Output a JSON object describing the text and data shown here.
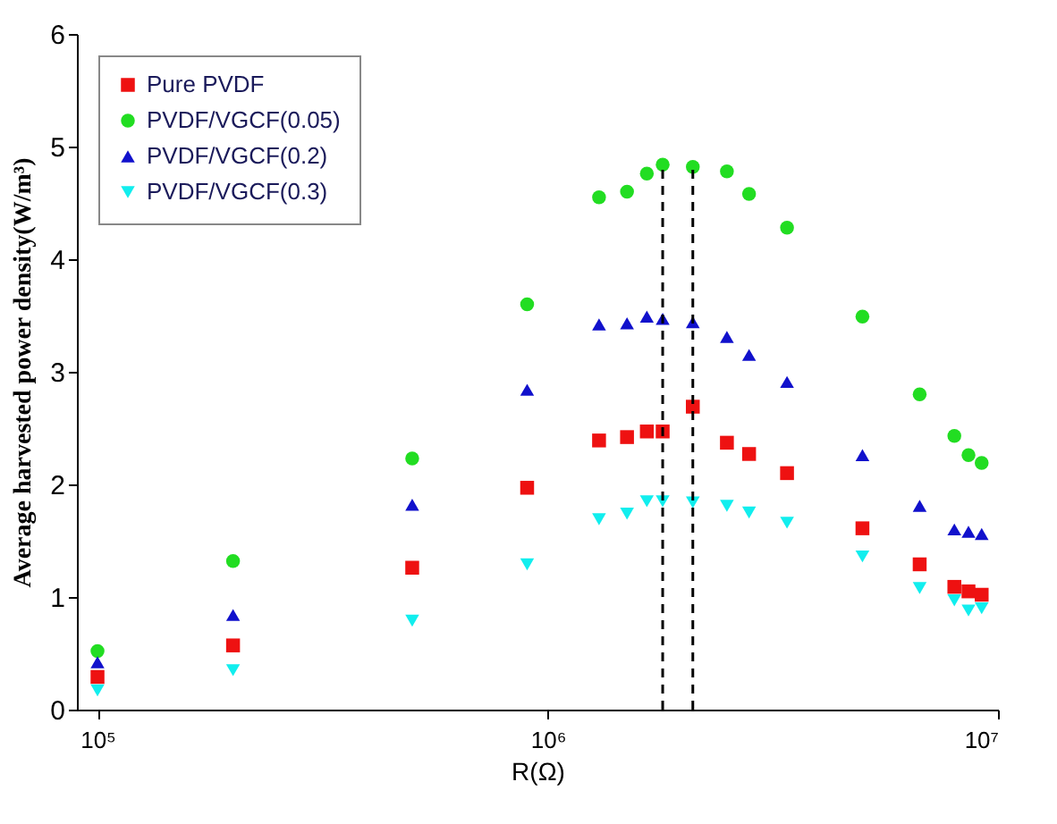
{
  "chart_data": {
    "type": "scatter",
    "xlabel": "R(Ω)",
    "ylabel": "Average harvested power density(W/m³)",
    "x": [
      100000,
      200000,
      500000,
      900000,
      1300000,
      1500000,
      1660000,
      1800000,
      2100000,
      2500000,
      2800000,
      3400000,
      5000000,
      6700000,
      8000000,
      8600000,
      9200000
    ],
    "series": [
      {
        "name": "Pure PVDF",
        "color": "#ee1111",
        "marker": "square",
        "values": [
          0.29,
          0.57,
          1.26,
          1.97,
          2.39,
          2.42,
          2.47,
          2.47,
          2.69,
          2.37,
          2.27,
          2.1,
          1.61,
          1.29,
          1.09,
          1.05,
          1.02
        ]
      },
      {
        "name": "PVDF/VGCF(0.05)",
        "color": "#22dd22",
        "marker": "circle",
        "values": [
          0.52,
          1.32,
          2.23,
          3.6,
          4.55,
          4.6,
          4.76,
          4.84,
          4.82,
          4.78,
          4.58,
          4.28,
          3.49,
          2.8,
          2.43,
          2.26,
          2.19
        ]
      },
      {
        "name": "PVDF/VGCF(0.2)",
        "color": "#1111cc",
        "marker": "triangle",
        "values": [
          0.42,
          0.84,
          1.82,
          2.84,
          3.42,
          3.43,
          3.49,
          3.47,
          3.44,
          3.31,
          3.15,
          2.91,
          2.26,
          1.81,
          1.6,
          1.58,
          1.56
        ]
      },
      {
        "name": "PVDF/VGCF(0.3)",
        "color": "#11eeee",
        "marker": "triangle_down",
        "values": [
          0.17,
          0.35,
          0.79,
          1.29,
          1.69,
          1.74,
          1.85,
          1.85,
          1.84,
          1.81,
          1.75,
          1.66,
          1.36,
          1.08,
          0.97,
          0.88,
          0.9
        ]
      }
    ],
    "ref_lines": [
      {
        "axis": "x",
        "value": 1800000,
        "color": "#000000",
        "line_style": "dashed"
      },
      {
        "axis": "x",
        "value": 2100000,
        "color": "#000000",
        "line_style": "dashed"
      }
    ],
    "log": "x",
    "xlim": [
      90000,
      10000000
    ],
    "xticks": [
      {
        "value": 100000,
        "label": "10⁵"
      },
      {
        "value": 1000000,
        "label": "10⁶"
      },
      {
        "value": 10000000,
        "label": "10⁷"
      }
    ],
    "ylim": [
      0,
      6
    ],
    "yticks": [
      0,
      1,
      2,
      3,
      4,
      5,
      6
    ],
    "grid": false,
    "legend": "top left"
  }
}
